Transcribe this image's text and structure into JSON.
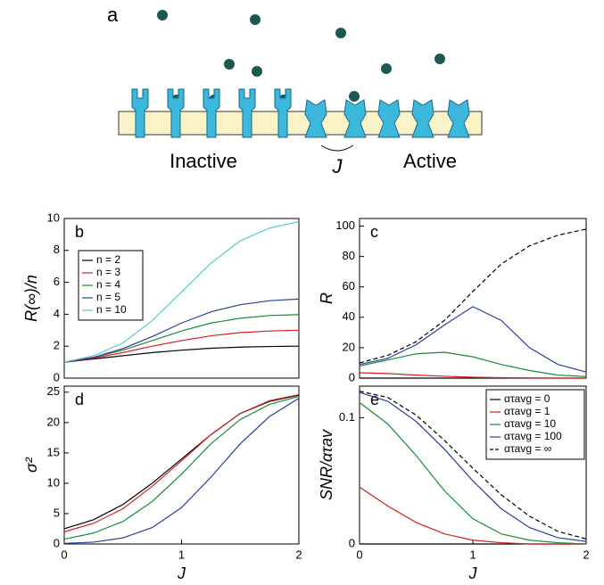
{
  "diagram": {
    "label": "a",
    "inactive": "Inactive",
    "active": "Active",
    "coupling": "J"
  },
  "chart_data": [
    {
      "type": "line",
      "panel": "b",
      "ylabel": "R(∞)/n",
      "x": [
        0,
        0.25,
        0.5,
        0.75,
        1,
        1.25,
        1.5,
        1.75,
        2
      ],
      "xlim": [
        0,
        2
      ],
      "ylim": [
        0,
        10
      ],
      "yticks": [
        0,
        2,
        4,
        6,
        8,
        10
      ],
      "legend": "upper left",
      "series": [
        {
          "name": "n = 2",
          "color": "#000000",
          "values": [
            1,
            1.2,
            1.4,
            1.6,
            1.75,
            1.87,
            1.94,
            1.98,
            2.0
          ]
        },
        {
          "name": "n = 3",
          "color": "#d62020",
          "values": [
            1,
            1.25,
            1.6,
            2.0,
            2.35,
            2.65,
            2.85,
            2.95,
            3.0
          ]
        },
        {
          "name": "n = 4",
          "color": "#1a8a3a",
          "values": [
            1,
            1.3,
            1.75,
            2.35,
            2.95,
            3.45,
            3.75,
            3.92,
            3.98
          ]
        },
        {
          "name": "n = 5",
          "color": "#2a3f9a",
          "values": [
            1,
            1.3,
            1.85,
            2.6,
            3.45,
            4.15,
            4.6,
            4.85,
            4.95
          ]
        },
        {
          "name": "n = 10",
          "color": "#5bc8c8",
          "values": [
            1,
            1.4,
            2.2,
            3.6,
            5.4,
            7.2,
            8.6,
            9.4,
            9.8
          ]
        }
      ]
    },
    {
      "type": "line",
      "panel": "c",
      "ylabel": "R",
      "x": [
        0,
        0.25,
        0.5,
        0.75,
        1,
        1.25,
        1.5,
        1.75,
        2
      ],
      "xlim": [
        0,
        2
      ],
      "ylim": [
        0,
        105
      ],
      "yticks": [
        0,
        20,
        40,
        60,
        80,
        100
      ],
      "series": [
        {
          "color": "#000000",
          "values": [
            0,
            0,
            0,
            0,
            0,
            0,
            0,
            0,
            0
          ]
        },
        {
          "color": "#d62020",
          "values": [
            3.5,
            3,
            2,
            1.2,
            0.6,
            0.3,
            0.1,
            0,
            0
          ]
        },
        {
          "color": "#1a8a3a",
          "values": [
            8,
            12,
            16,
            17,
            14,
            9,
            5,
            2,
            1
          ]
        },
        {
          "color": "#2a3f9a",
          "values": [
            9,
            13,
            22,
            35,
            47,
            38,
            20,
            9,
            4
          ]
        },
        {
          "color": "#000000",
          "dash": true,
          "values": [
            10,
            15,
            24,
            38,
            57,
            75,
            87,
            94,
            98
          ]
        }
      ]
    },
    {
      "type": "line",
      "panel": "d",
      "ylabel": "σ²",
      "xlabel": "J",
      "x": [
        0,
        0.25,
        0.5,
        0.75,
        1,
        1.25,
        1.5,
        1.75,
        2
      ],
      "xlim": [
        0,
        2
      ],
      "ylim": [
        0,
        26
      ],
      "yticks": [
        0,
        5,
        10,
        15,
        20,
        25
      ],
      "xticks": [
        0,
        1,
        2
      ],
      "series": [
        {
          "color": "#000000",
          "values": [
            2.5,
            4,
            6.5,
            10,
            14,
            18,
            21.5,
            23.5,
            24.5
          ]
        },
        {
          "color": "#d62020",
          "values": [
            2,
            3.4,
            5.8,
            9.5,
            13.7,
            18,
            21.5,
            23.6,
            24.6
          ]
        },
        {
          "color": "#1a8a3a",
          "values": [
            0.8,
            1.8,
            3.7,
            7,
            11.5,
            16.5,
            20.5,
            23,
            24.3
          ]
        },
        {
          "color": "#2a3f9a",
          "values": [
            0.1,
            0.3,
            1,
            2.7,
            6,
            11,
            16.5,
            21,
            24
          ]
        }
      ]
    },
    {
      "type": "line",
      "panel": "e",
      "ylabel": "SNR/ατav",
      "xlabel": "J",
      "x": [
        0,
        0.25,
        0.5,
        0.75,
        1,
        1.25,
        1.5,
        1.75,
        2
      ],
      "xlim": [
        0,
        2
      ],
      "ylim": [
        0,
        0.125
      ],
      "yticks": [
        0,
        0.1
      ],
      "xticks": [
        0,
        1,
        2
      ],
      "legend": "upper right",
      "series": [
        {
          "name": "ατavg = 0",
          "color": "#000000",
          "values": [
            0,
            0,
            0,
            0,
            0,
            0,
            0,
            0,
            0
          ]
        },
        {
          "name": "ατavg = 1",
          "color": "#d62020",
          "values": [
            0.045,
            0.03,
            0.017,
            0.008,
            0.003,
            0.001,
            0,
            0,
            0
          ]
        },
        {
          "name": "ατavg = 10",
          "color": "#1a8a3a",
          "values": [
            0.112,
            0.095,
            0.07,
            0.042,
            0.02,
            0.008,
            0.003,
            0.001,
            0
          ]
        },
        {
          "name": "ατavg = 100",
          "color": "#2a3f9a",
          "values": [
            0.12,
            0.113,
            0.097,
            0.075,
            0.05,
            0.028,
            0.013,
            0.005,
            0.002
          ]
        },
        {
          "name": "ατavg = ∞",
          "color": "#000000",
          "dash": true,
          "values": [
            0.121,
            0.116,
            0.102,
            0.082,
            0.06,
            0.039,
            0.022,
            0.01,
            0.004
          ]
        }
      ]
    }
  ]
}
